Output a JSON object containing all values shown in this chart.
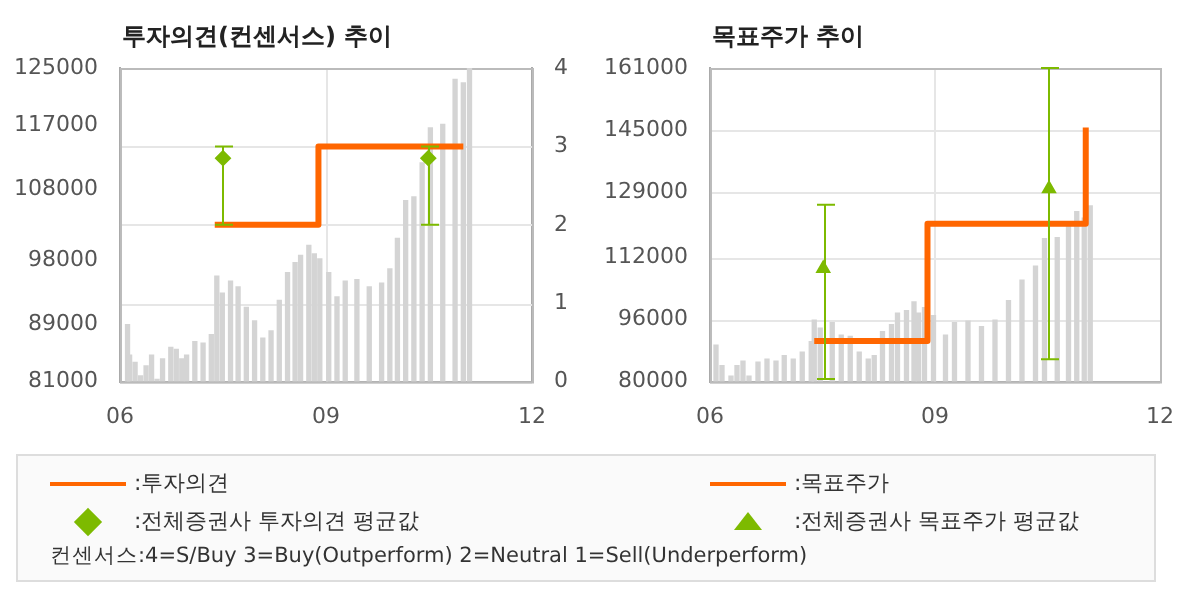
{
  "chart_data": [
    {
      "type": "bar",
      "title": "투자의견(컨센서스) 추이",
      "xlim": [
        6,
        12
      ],
      "xticks": [
        {
          "value": 6,
          "label": "06"
        },
        {
          "value": 9,
          "label": "09"
        },
        {
          "value": 12,
          "label": "12"
        }
      ],
      "ylim": [
        81000,
        125000
      ],
      "yticks": [
        81000,
        89000,
        98000,
        108000,
        117000,
        125000
      ],
      "y2lim": [
        0,
        4
      ],
      "y2ticks": [
        0,
        1,
        2,
        3,
        4
      ],
      "grid": true,
      "legend": "bottom",
      "series": [
        {
          "color": "#d4d4d4",
          "x": [
            6.11,
            6.14,
            6.22,
            6.3,
            6.38,
            6.46,
            6.54,
            6.62,
            6.74,
            6.82,
            6.9,
            6.97,
            7.09,
            7.21,
            7.33,
            7.41,
            7.49,
            7.61,
            7.72,
            7.84,
            7.96,
            8.08,
            8.2,
            8.32,
            8.44,
            8.55,
            8.63,
            8.75,
            8.83,
            8.91,
            9.04,
            9.16,
            9.28,
            9.45,
            9.63,
            9.81,
            9.93,
            10.04,
            10.16,
            10.28,
            10.4,
            10.52,
            10.7,
            10.88,
            11.0,
            11.09
          ],
          "values": [
            89000,
            84700,
            83700,
            81800,
            83200,
            84700,
            81300,
            84200,
            85800,
            85500,
            84200,
            84700,
            86600,
            86400,
            87600,
            95800,
            93400,
            95100,
            94300,
            91400,
            89500,
            87100,
            88100,
            92400,
            96300,
            97700,
            98700,
            100100,
            98900,
            98200,
            96300,
            92900,
            95100,
            95300,
            94300,
            94800,
            96800,
            101100,
            106400,
            106900,
            111700,
            116600,
            117100,
            123400,
            122900,
            125000
          ]
        },
        {
          "type": "step",
          "name": ":투자의견",
          "color": "#ff6600",
          "axis": "y2",
          "x": [
            7.38,
            8.89,
            11.0
          ],
          "values": [
            2,
            3,
            3
          ]
        },
        {
          "type": "scatter",
          "name": ":전체증권사 투자의견 평균값",
          "color": "#7dba00",
          "marker": "diamond",
          "axis": "y2",
          "x": [
            7.5,
            10.49
          ],
          "values": [
            2.85,
            2.85
          ],
          "errors": [
            [
              2,
              3
            ],
            [
              2,
              3
            ]
          ]
        }
      ],
      "annotations": [
        "컨센서스:4=S/Buy    3=Buy(Outperform)  2=Neutral   1=Sell(Underperform)"
      ]
    },
    {
      "type": "bar",
      "title": "목표주가 추이",
      "xlim": [
        6,
        12
      ],
      "xticks": [
        {
          "value": 6,
          "label": "06"
        },
        {
          "value": 9,
          "label": "09"
        },
        {
          "value": 12,
          "label": "12"
        }
      ],
      "ylim": [
        80000,
        161000
      ],
      "yticks": [
        80000,
        96000,
        112000,
        129000,
        145000,
        161000
      ],
      "grid": true,
      "legend": "bottom",
      "series": [
        {
          "color": "#d4d4d4",
          "x": [
            6.08,
            6.16,
            6.28,
            6.36,
            6.44,
            6.52,
            6.64,
            6.76,
            6.88,
            6.99,
            7.11,
            7.23,
            7.35,
            7.39,
            7.47,
            7.63,
            7.75,
            7.87,
            7.99,
            8.11,
            8.19,
            8.3,
            8.42,
            8.5,
            8.62,
            8.72,
            8.78,
            8.86,
            8.98,
            9.14,
            9.26,
            9.44,
            9.62,
            9.8,
            9.98,
            10.16,
            10.34,
            10.46,
            10.63,
            10.78,
            10.89,
            10.99,
            11.07
          ],
          "values": [
            89400,
            84100,
            81400,
            84100,
            85300,
            81400,
            85000,
            85800,
            85300,
            86700,
            85800,
            87600,
            90300,
            95900,
            93800,
            95200,
            92000,
            91700,
            87600,
            85800,
            86700,
            92900,
            94700,
            97700,
            98300,
            100600,
            97700,
            99100,
            97000,
            92000,
            95200,
            95600,
            94200,
            95900,
            100900,
            106200,
            109800,
            116900,
            117200,
            121300,
            123900,
            122200,
            125400
          ]
        },
        {
          "type": "step",
          "name": ":목표주가",
          "color": "#ff6600",
          "x": [
            7.39,
            8.9,
            11.01
          ],
          "values": [
            90500,
            120800,
            145600
          ]
        },
        {
          "type": "scatter",
          "name": ":전체증권사 목표주가 평균값",
          "color": "#7dba00",
          "marker": "triangle",
          "x": [
            7.51,
            10.52
          ],
          "values": [
            109200,
            129800
          ],
          "errors": [
            [
              80700,
              125700
            ],
            [
              85800,
              161000
            ]
          ]
        }
      ]
    }
  ]
}
